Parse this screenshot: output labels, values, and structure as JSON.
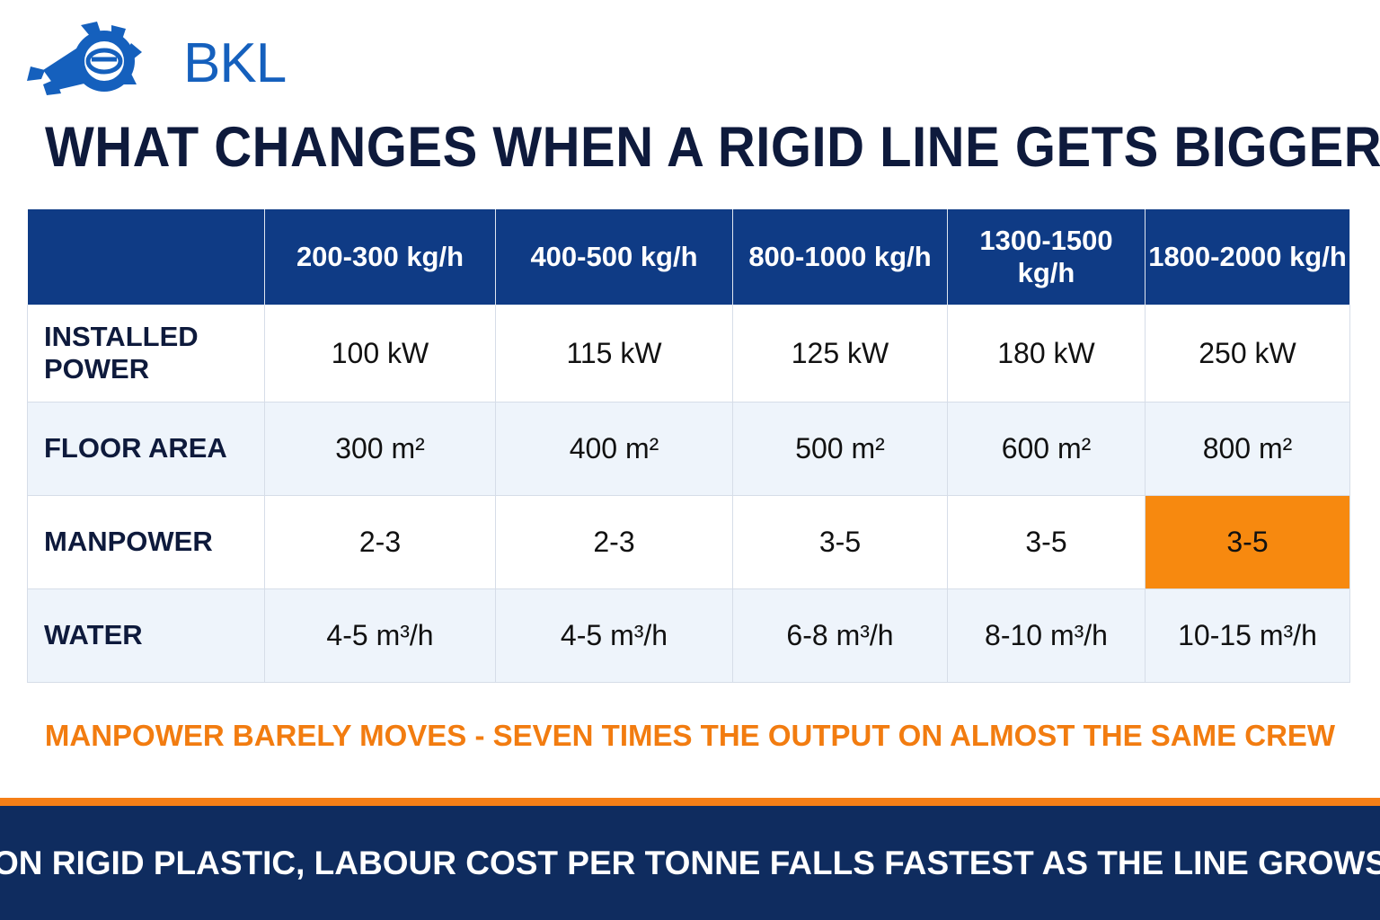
{
  "brand": {
    "logo_text": "BKL",
    "color": "#1560bd"
  },
  "title": "WHAT CHANGES WHEN A RIGID LINE GETS  BIGGER",
  "table": {
    "columns": [
      "",
      "200-300 kg/h",
      "400-500 kg/h",
      "800-1000 kg/h",
      "1300-1500 kg/h",
      "1800-2000 kg/h"
    ],
    "rows": [
      {
        "label": "INSTALLED POWER",
        "values": [
          "100 kW",
          "115 kW",
          "125 kW",
          "180 kW",
          "250 kW"
        ]
      },
      {
        "label": "FLOOR AREA",
        "values": [
          "300 m²",
          "400 m²",
          "500 m²",
          "600 m²",
          "800 m²"
        ]
      },
      {
        "label": "MANPOWER",
        "values": [
          "2-3",
          "2-3",
          "3-5",
          "3-5",
          "3-5"
        ]
      },
      {
        "label": "WATER",
        "values": [
          "4-5 m³/h",
          "4-5 m³/h",
          "6-8 m³/h",
          "8-10 m³/h",
          "10-15 m³/h"
        ]
      }
    ],
    "highlight_color": "#f7890f",
    "header_color": "#0f3b85"
  },
  "note": "MANPOWER BARELY MOVES - SEVEN TIMES THE OUTPUT ON ALMOST THE SAME CREW",
  "footer": "ON RIGID PLASTIC, LABOUR COST PER TONNE FALLS FASTEST AS THE LINE GROWS"
}
